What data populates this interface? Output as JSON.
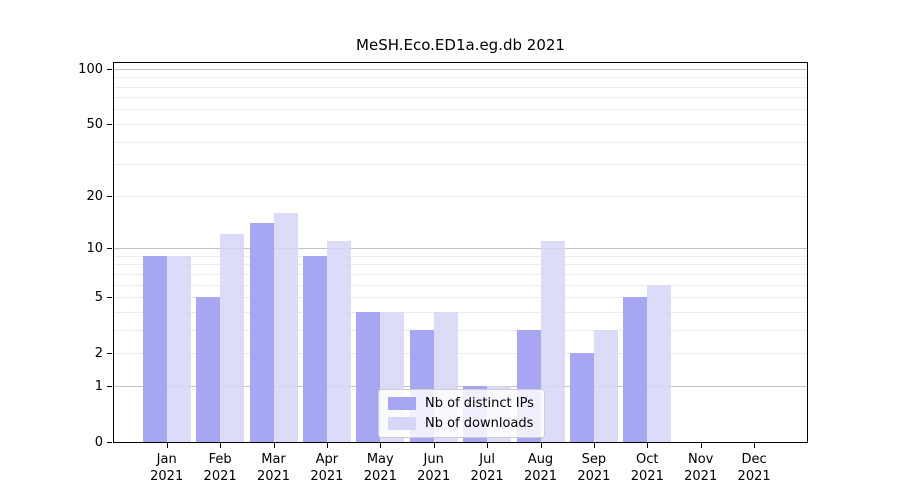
{
  "title": "MeSH.Eco.ED1a.eg.db 2021",
  "chart_data": {
    "type": "bar",
    "title": "MeSH.Eco.ED1a.eg.db 2021",
    "xlabel": "",
    "ylabel": "",
    "yscale": "log1p",
    "ylim": [
      0,
      110
    ],
    "grid": "on",
    "legend_position": "lower center",
    "categories": [
      "Jan 2021",
      "Feb 2021",
      "Mar 2021",
      "Apr 2021",
      "May 2021",
      "Jun 2021",
      "Jul 2021",
      "Aug 2021",
      "Sep 2021",
      "Oct 2021",
      "Nov 2021",
      "Dec 2021"
    ],
    "series": [
      {
        "name": "Nb of distinct IPs",
        "color": "#a6a6f2",
        "values": [
          9,
          5,
          14,
          9,
          4,
          3,
          1,
          3,
          2,
          5,
          0,
          0
        ]
      },
      {
        "name": "Nb of downloads",
        "color": "#d6d6f7",
        "values": [
          9,
          12,
          16,
          11,
          4,
          4,
          1,
          11,
          3,
          6,
          0,
          0
        ]
      }
    ],
    "yticks": [
      0,
      1,
      2,
      5,
      10,
      20,
      50,
      100
    ],
    "grid_major_values": [
      1,
      10,
      100
    ],
    "grid_minor_values": [
      2,
      3,
      4,
      5,
      6,
      7,
      8,
      9,
      20,
      30,
      40,
      50,
      60,
      70,
      80,
      90
    ]
  }
}
